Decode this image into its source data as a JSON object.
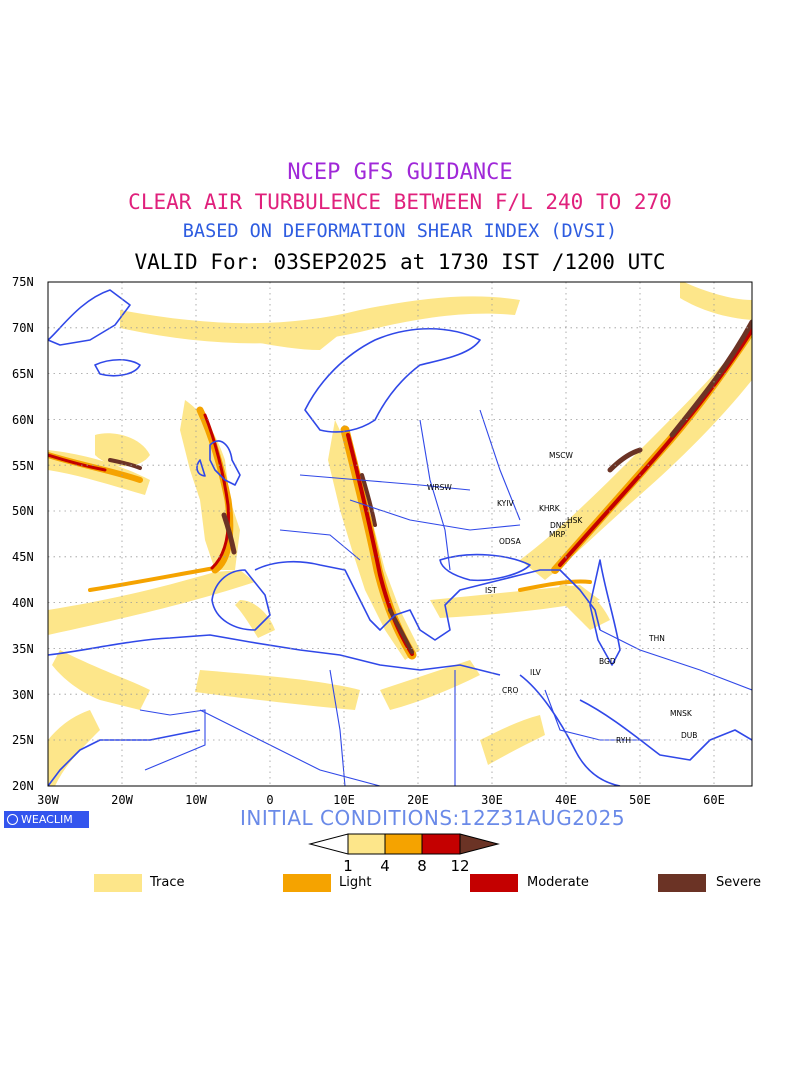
{
  "header": {
    "line1": "NCEP GFS GUIDANCE",
    "line2": "CLEAR AIR TURBULENCE BETWEEN F/L 240 TO 270",
    "line3": "BASED ON DEFORMATION SHEAR INDEX (DVSI)",
    "line4": "VALID For: 03SEP2025 at 1730 IST /1200 UTC"
  },
  "map": {
    "lat_labels": [
      "75N",
      "70N",
      "65N",
      "60N",
      "55N",
      "50N",
      "45N",
      "40N",
      "35N",
      "30N",
      "25N",
      "20N"
    ],
    "lon_labels": [
      "30W",
      "20W",
      "10W",
      "0",
      "10E",
      "20E",
      "30E",
      "40E",
      "50E",
      "60E"
    ],
    "stations": [
      "WRSW",
      "KYIV",
      "MSCW",
      "KHRK",
      "HSK",
      "DNST",
      "MRP",
      "ODSA",
      "IST",
      "THN",
      "BGD",
      "CRO",
      "ILV",
      "MNSK",
      "DUB",
      "RYH"
    ],
    "colors": {
      "coastline": "#3048e8",
      "trace": "#fde68a",
      "light": "#f5a300",
      "moderate": "#c40000",
      "severe": "#6b3325"
    }
  },
  "brand": "WEACLIM",
  "initial_conditions": "INITIAL CONDITIONS:12Z31AUG2025",
  "colorbar": {
    "ticks": [
      "1",
      "4",
      "8",
      "12"
    ],
    "colors": [
      "#ffffff",
      "#fde68a",
      "#f5a300",
      "#c40000",
      "#6b3325"
    ]
  },
  "legend": [
    {
      "label": "Trace",
      "color": "#fde68a"
    },
    {
      "label": "Light",
      "color": "#f5a300"
    },
    {
      "label": "Moderate",
      "color": "#c40000"
    },
    {
      "label": "Severe",
      "color": "#6b3325"
    }
  ]
}
